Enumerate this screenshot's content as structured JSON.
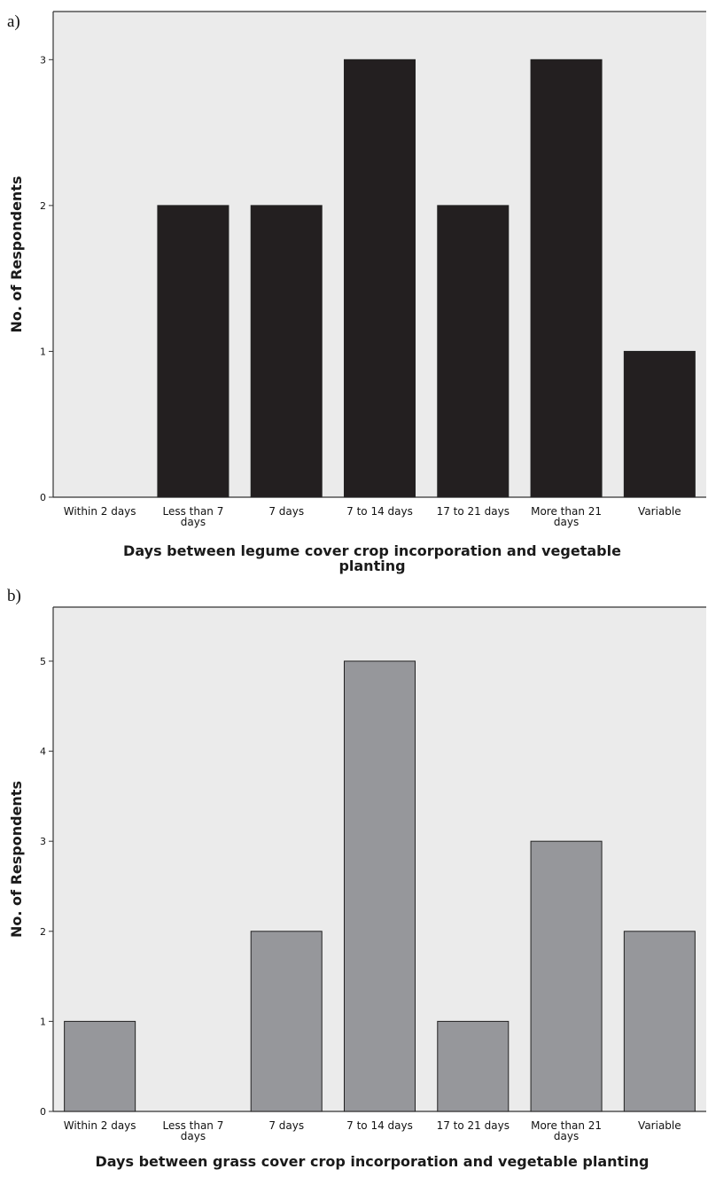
{
  "panels": [
    {
      "letter": "a)",
      "chart_data": {
        "type": "bar",
        "categories": [
          [
            "Within 2 days"
          ],
          [
            "Less than 7",
            "days"
          ],
          [
            "7 days"
          ],
          [
            "7 to 14 days"
          ],
          [
            "17 to 21 days"
          ],
          [
            "More than 21",
            "days"
          ],
          [
            "Variable"
          ]
        ],
        "values": [
          0,
          2,
          2,
          3,
          2,
          3,
          1
        ],
        "ylabel": "No. of Respondents",
        "xlabel": [
          "Days between legume cover crop incorporation and vegetable",
          "planting"
        ],
        "ylim": [
          0,
          3.33
        ],
        "yticks": [
          0,
          1,
          2,
          3
        ],
        "bar_color": "#231f20",
        "plot_bg": "#ebebeb",
        "grid": false
      }
    },
    {
      "letter": "b)",
      "chart_data": {
        "type": "bar",
        "categories": [
          [
            "Within 2 days"
          ],
          [
            "Less than 7",
            "days"
          ],
          [
            "7 days"
          ],
          [
            "7 to 14 days"
          ],
          [
            "17 to 21 days"
          ],
          [
            "More than 21",
            "days"
          ],
          [
            "Variable"
          ]
        ],
        "values": [
          1,
          0,
          2,
          5,
          1,
          3,
          2
        ],
        "ylabel": "No. of Respondents",
        "xlabel": [
          "Days between grass cover crop incorporation and vegetable planting"
        ],
        "ylim": [
          0,
          5.6
        ],
        "yticks": [
          0,
          1,
          2,
          3,
          4,
          5
        ],
        "bar_color": "#96979b",
        "plot_bg": "#ebebeb",
        "grid": false
      }
    }
  ]
}
